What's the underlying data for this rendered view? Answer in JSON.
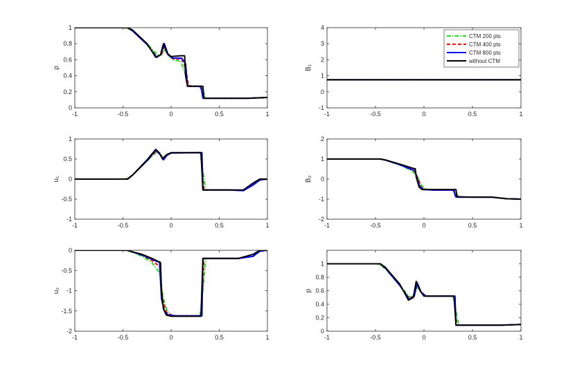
{
  "colors": {
    "ctm200": "#1be31b",
    "ctm400": "#ff0000",
    "ctm800": "#0000ff",
    "without": "#000000",
    "axis": "#262626"
  },
  "legend": {
    "placement": "top-right of B1 panel",
    "entries": [
      {
        "label": "CTM 200 pts",
        "color": "#1be31b",
        "dash": "dash-dot"
      },
      {
        "label": "CTM 400 pts",
        "color": "#ff0000",
        "dash": "dashed"
      },
      {
        "label": "CTM 800 pts",
        "color": "#0000ff",
        "dash": "solid"
      },
      {
        "label": "without CTM",
        "color": "#000000",
        "dash": "solid"
      }
    ]
  },
  "chart_data": [
    {
      "id": "rho",
      "type": "line",
      "ylabel": "ρ",
      "xlim": [
        -1,
        1
      ],
      "ylim": [
        0,
        1
      ],
      "xticks": [
        "-1",
        "-0.5",
        "0",
        "0.5",
        "1"
      ],
      "yticks": [
        "0",
        "0.2",
        "0.4",
        "0.6",
        "0.8",
        "1"
      ],
      "series": [
        {
          "key": "ctm200",
          "x": [
            -1,
            -0.48,
            -0.4,
            -0.25,
            -0.14,
            -0.1,
            -0.07,
            -0.03,
            0.02,
            0.1,
            0.14,
            0.18,
            0.22,
            0.29,
            0.32,
            0.36,
            0.5,
            0.8,
            1
          ],
          "y": [
            1,
            1,
            0.96,
            0.8,
            0.66,
            0.66,
            0.73,
            0.66,
            0.6,
            0.58,
            0.45,
            0.28,
            0.27,
            0.27,
            0.24,
            0.12,
            0.12,
            0.12,
            0.13
          ]
        },
        {
          "key": "ctm400",
          "x": [
            -1,
            -0.46,
            -0.4,
            -0.25,
            -0.15,
            -0.1,
            -0.07,
            -0.03,
            0.02,
            0.11,
            0.15,
            0.18,
            0.22,
            0.3,
            0.32,
            0.34,
            0.5,
            0.8,
            1
          ],
          "y": [
            1,
            1,
            0.96,
            0.79,
            0.64,
            0.66,
            0.77,
            0.66,
            0.61,
            0.61,
            0.5,
            0.28,
            0.27,
            0.27,
            0.2,
            0.12,
            0.12,
            0.12,
            0.13
          ]
        },
        {
          "key": "ctm800",
          "x": [
            -1,
            -0.45,
            -0.4,
            -0.25,
            -0.15,
            -0.11,
            -0.07,
            -0.03,
            0.02,
            0.11,
            0.15,
            0.17,
            0.22,
            0.31,
            0.33,
            0.5,
            0.8,
            1
          ],
          "y": [
            1,
            1,
            0.96,
            0.79,
            0.63,
            0.66,
            0.8,
            0.66,
            0.62,
            0.62,
            0.55,
            0.27,
            0.27,
            0.27,
            0.12,
            0.12,
            0.12,
            0.13
          ]
        },
        {
          "key": "without",
          "x": [
            -1,
            -0.45,
            -0.4,
            -0.25,
            -0.16,
            -0.11,
            -0.08,
            -0.04,
            0,
            0.1,
            0.14,
            0.15,
            0.17,
            0.3,
            0.33,
            0.34,
            0.5,
            0.8,
            1
          ],
          "y": [
            1,
            1,
            0.97,
            0.8,
            0.63,
            0.66,
            0.8,
            0.68,
            0.64,
            0.65,
            0.65,
            0.4,
            0.27,
            0.27,
            0.27,
            0.12,
            0.12,
            0.12,
            0.13
          ]
        }
      ]
    },
    {
      "id": "B1",
      "type": "line",
      "ylabel": "B₁",
      "xlim": [
        -1,
        1
      ],
      "ylim": [
        -1,
        4
      ],
      "xticks": [
        "-1",
        "-0.5",
        "0",
        "0.5",
        "1"
      ],
      "yticks": [
        "-1",
        "0",
        "1",
        "2",
        "3",
        "4"
      ],
      "series": [
        {
          "key": "ctm200",
          "x": [
            -1,
            1
          ],
          "y": [
            0.75,
            0.75
          ]
        },
        {
          "key": "ctm400",
          "x": [
            -1,
            1
          ],
          "y": [
            0.75,
            0.75
          ]
        },
        {
          "key": "ctm800",
          "x": [
            -1,
            1
          ],
          "y": [
            0.75,
            0.75
          ]
        },
        {
          "key": "without",
          "x": [
            -1,
            1
          ],
          "y": [
            0.75,
            0.75
          ]
        }
      ]
    },
    {
      "id": "u1",
      "type": "line",
      "ylabel": "u₁",
      "xlim": [
        -1,
        1
      ],
      "ylim": [
        -1,
        1
      ],
      "xticks": [
        "-1",
        "-0.5",
        "0",
        "0.5",
        "1"
      ],
      "yticks": [
        "-1",
        "-0.5",
        "0",
        "0.5",
        "1"
      ],
      "series": [
        {
          "key": "ctm200",
          "x": [
            -1,
            -0.48,
            -0.4,
            -0.25,
            -0.15,
            -0.11,
            -0.08,
            -0.04,
            0,
            0.3,
            0.33,
            0.36,
            0.5,
            0.6,
            0.75,
            0.85,
            0.93,
            1
          ],
          "y": [
            0,
            0,
            0.1,
            0.45,
            0.68,
            0.6,
            0.55,
            0.62,
            0.65,
            0.66,
            0.2,
            -0.27,
            -0.27,
            -0.27,
            -0.28,
            -0.15,
            -0.02,
            0
          ]
        },
        {
          "key": "ctm400",
          "x": [
            -1,
            -0.46,
            -0.4,
            -0.25,
            -0.15,
            -0.11,
            -0.08,
            -0.04,
            0,
            0.31,
            0.33,
            0.34,
            0.5,
            0.6,
            0.75,
            0.85,
            0.92,
            1
          ],
          "y": [
            0,
            0,
            0.1,
            0.46,
            0.71,
            0.6,
            0.5,
            0.6,
            0.65,
            0.66,
            0.0,
            -0.27,
            -0.27,
            -0.27,
            -0.28,
            -0.15,
            -0.02,
            0
          ]
        },
        {
          "key": "ctm800",
          "x": [
            -1,
            -0.45,
            -0.4,
            -0.25,
            -0.16,
            -0.11,
            -0.08,
            -0.04,
            0,
            0.32,
            0.33,
            0.5,
            0.6,
            0.75,
            0.85,
            0.92,
            1
          ],
          "y": [
            0,
            0,
            0.1,
            0.46,
            0.72,
            0.6,
            0.48,
            0.6,
            0.65,
            0.66,
            -0.27,
            -0.27,
            -0.27,
            -0.29,
            -0.15,
            -0.02,
            0
          ]
        },
        {
          "key": "without",
          "x": [
            -1,
            -0.45,
            -0.4,
            -0.25,
            -0.16,
            -0.12,
            -0.09,
            -0.05,
            0,
            0.31,
            0.33,
            0.5,
            0.6,
            0.75,
            0.85,
            0.92,
            1
          ],
          "y": [
            0,
            0,
            0.1,
            0.48,
            0.74,
            0.65,
            0.5,
            0.6,
            0.66,
            0.66,
            -0.27,
            -0.27,
            -0.27,
            -0.27,
            -0.1,
            0,
            0
          ]
        }
      ]
    },
    {
      "id": "B2",
      "type": "line",
      "ylabel": "B₂",
      "xlim": [
        -1,
        1
      ],
      "ylim": [
        -2,
        2
      ],
      "xticks": [
        "-1",
        "-0.5",
        "0",
        "0.5",
        "1"
      ],
      "yticks": [
        "-2",
        "-1",
        "0",
        "1",
        "2"
      ],
      "series": [
        {
          "key": "ctm200",
          "x": [
            -1,
            -0.47,
            -0.4,
            -0.25,
            -0.14,
            -0.1,
            -0.06,
            -0.02,
            0.02,
            0.1,
            0.3,
            0.33,
            0.36,
            0.5,
            0.7,
            0.85,
            1
          ],
          "y": [
            1,
            1,
            0.95,
            0.7,
            0.45,
            0.3,
            0.05,
            -0.35,
            -0.5,
            -0.55,
            -0.55,
            -0.7,
            -0.9,
            -0.9,
            -0.9,
            -0.98,
            -1
          ]
        },
        {
          "key": "ctm400",
          "x": [
            -1,
            -0.46,
            -0.4,
            -0.25,
            -0.12,
            -0.09,
            -0.06,
            -0.03,
            0.02,
            0.1,
            0.3,
            0.32,
            0.34,
            0.5,
            0.7,
            0.85,
            1
          ],
          "y": [
            1,
            1,
            0.95,
            0.72,
            0.45,
            0.35,
            0.0,
            -0.4,
            -0.52,
            -0.55,
            -0.55,
            -0.75,
            -0.9,
            -0.9,
            -0.9,
            -0.98,
            -1
          ]
        },
        {
          "key": "ctm800",
          "x": [
            -1,
            -0.45,
            -0.4,
            -0.25,
            -0.12,
            -0.09,
            -0.07,
            -0.04,
            0.0,
            0.1,
            0.31,
            0.32,
            0.33,
            0.5,
            0.7,
            0.85,
            1
          ],
          "y": [
            1,
            1,
            0.95,
            0.72,
            0.47,
            0.4,
            0.0,
            -0.4,
            -0.52,
            -0.55,
            -0.55,
            -0.8,
            -0.9,
            -0.9,
            -0.9,
            -0.98,
            -1
          ]
        },
        {
          "key": "without",
          "x": [
            -1,
            -0.45,
            -0.4,
            -0.25,
            -0.1,
            -0.09,
            -0.08,
            -0.05,
            -0.02,
            0.1,
            0.31,
            0.33,
            0.34,
            0.5,
            0.7,
            0.85,
            1
          ],
          "y": [
            1,
            1,
            0.96,
            0.75,
            0.52,
            0.52,
            0.1,
            -0.4,
            -0.52,
            -0.52,
            -0.52,
            -0.52,
            -0.88,
            -0.9,
            -0.9,
            -0.98,
            -1
          ]
        }
      ]
    },
    {
      "id": "u2",
      "type": "line",
      "ylabel": "u₂",
      "xlim": [
        -1,
        1
      ],
      "ylim": [
        -2,
        0
      ],
      "xticks": [
        "-1",
        "-0.5",
        "0",
        "0.5",
        "1"
      ],
      "yticks": [
        "-2",
        "-1.5",
        "-1",
        "-0.5",
        "0"
      ],
      "series": [
        {
          "key": "ctm200",
          "x": [
            -1,
            -0.48,
            -0.4,
            -0.3,
            -0.2,
            -0.12,
            -0.08,
            -0.04,
            0,
            0.05,
            0.3,
            0.33,
            0.36,
            0.5,
            0.7,
            0.85,
            0.93,
            1
          ],
          "y": [
            0,
            0,
            -0.05,
            -0.15,
            -0.3,
            -0.55,
            -1.2,
            -1.5,
            -1.6,
            -1.62,
            -1.62,
            -1.0,
            -0.2,
            -0.2,
            -0.2,
            -0.15,
            -0.02,
            0
          ]
        },
        {
          "key": "ctm400",
          "x": [
            -1,
            -0.46,
            -0.4,
            -0.3,
            -0.2,
            -0.12,
            -0.09,
            -0.05,
            0,
            0.05,
            0.31,
            0.33,
            0.34,
            0.5,
            0.7,
            0.85,
            0.92,
            1
          ],
          "y": [
            0,
            0,
            -0.04,
            -0.12,
            -0.25,
            -0.4,
            -1.2,
            -1.52,
            -1.6,
            -1.62,
            -1.62,
            -0.8,
            -0.2,
            -0.2,
            -0.2,
            -0.15,
            -0.02,
            0
          ]
        },
        {
          "key": "ctm800",
          "x": [
            -1,
            -0.45,
            -0.4,
            -0.3,
            -0.2,
            -0.12,
            -0.1,
            -0.07,
            -0.03,
            0.05,
            0.32,
            0.33,
            0.5,
            0.7,
            0.85,
            0.92,
            1
          ],
          "y": [
            0,
            0,
            -0.04,
            -0.12,
            -0.22,
            -0.3,
            -1.2,
            -1.5,
            -1.6,
            -1.62,
            -1.62,
            -0.2,
            -0.2,
            -0.2,
            -0.15,
            -0.02,
            0
          ]
        },
        {
          "key": "without",
          "x": [
            -1,
            -0.45,
            -0.4,
            -0.3,
            -0.2,
            -0.11,
            -0.1,
            -0.08,
            -0.05,
            0,
            0.31,
            0.33,
            0.5,
            0.7,
            0.85,
            0.92,
            1
          ],
          "y": [
            0,
            0,
            -0.04,
            -0.1,
            -0.2,
            -0.3,
            -1.0,
            -1.45,
            -1.6,
            -1.63,
            -1.63,
            -0.2,
            -0.2,
            -0.2,
            -0.1,
            0,
            0
          ]
        }
      ]
    },
    {
      "id": "p",
      "type": "line",
      "ylabel": "p",
      "xlim": [
        -1,
        1
      ],
      "ylim": [
        0,
        1.2
      ],
      "xticks": [
        "-1",
        "-0.5",
        "0",
        "0.5",
        "1"
      ],
      "yticks": [
        "0",
        "0.2",
        "0.4",
        "0.6",
        "0.8",
        "1"
      ],
      "series": [
        {
          "key": "ctm200",
          "x": [
            -1,
            -0.48,
            -0.4,
            -0.25,
            -0.14,
            -0.1,
            -0.07,
            -0.03,
            0.02,
            0.3,
            0.33,
            0.36,
            0.5,
            0.8,
            1
          ],
          "y": [
            1,
            1,
            0.93,
            0.68,
            0.5,
            0.55,
            0.66,
            0.58,
            0.52,
            0.52,
            0.3,
            0.09,
            0.09,
            0.09,
            0.1
          ]
        },
        {
          "key": "ctm400",
          "x": [
            -1,
            -0.46,
            -0.4,
            -0.25,
            -0.15,
            -0.1,
            -0.07,
            -0.03,
            0.02,
            0.31,
            0.33,
            0.34,
            0.5,
            0.8,
            1
          ],
          "y": [
            1,
            1,
            0.94,
            0.68,
            0.48,
            0.53,
            0.7,
            0.58,
            0.52,
            0.52,
            0.2,
            0.09,
            0.09,
            0.09,
            0.1
          ]
        },
        {
          "key": "ctm800",
          "x": [
            -1,
            -0.45,
            -0.4,
            -0.25,
            -0.15,
            -0.1,
            -0.07,
            -0.03,
            0.02,
            0.32,
            0.33,
            0.5,
            0.8,
            1
          ],
          "y": [
            1,
            1,
            0.94,
            0.68,
            0.47,
            0.52,
            0.72,
            0.58,
            0.52,
            0.52,
            0.09,
            0.09,
            0.09,
            0.1
          ]
        },
        {
          "key": "without",
          "x": [
            -1,
            -0.45,
            -0.4,
            -0.25,
            -0.16,
            -0.11,
            -0.08,
            -0.04,
            0,
            0.31,
            0.33,
            0.5,
            0.8,
            1
          ],
          "y": [
            1,
            1,
            0.95,
            0.7,
            0.46,
            0.5,
            0.74,
            0.6,
            0.52,
            0.52,
            0.09,
            0.09,
            0.09,
            0.1
          ]
        }
      ]
    }
  ]
}
